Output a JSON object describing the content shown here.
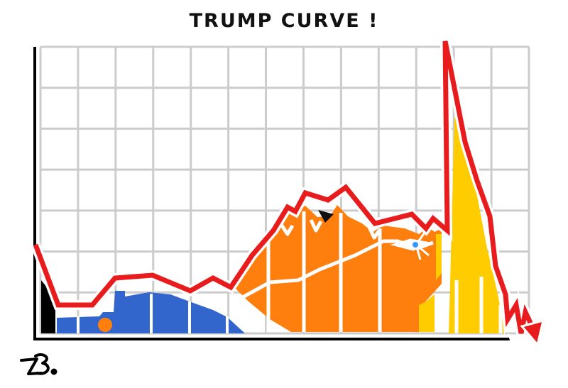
{
  "title": "TRUMP CURVE !",
  "colors": {
    "background": "#ffffff",
    "grid": "#cccccc",
    "axis": "#000000",
    "curve": "#e81c1c",
    "curve_outline": "#ffffff",
    "blue_figure": "#3366cc",
    "orange_figure": "#ff7f0e",
    "yellow_figure": "#ffcc00",
    "black_figure": "#000000",
    "eye_blue": "#3399ff"
  },
  "icons": [
    "chart-grid",
    "red-curve-arrow",
    "blue-figure",
    "orange-figure",
    "yellow-figure",
    "signature"
  ]
}
